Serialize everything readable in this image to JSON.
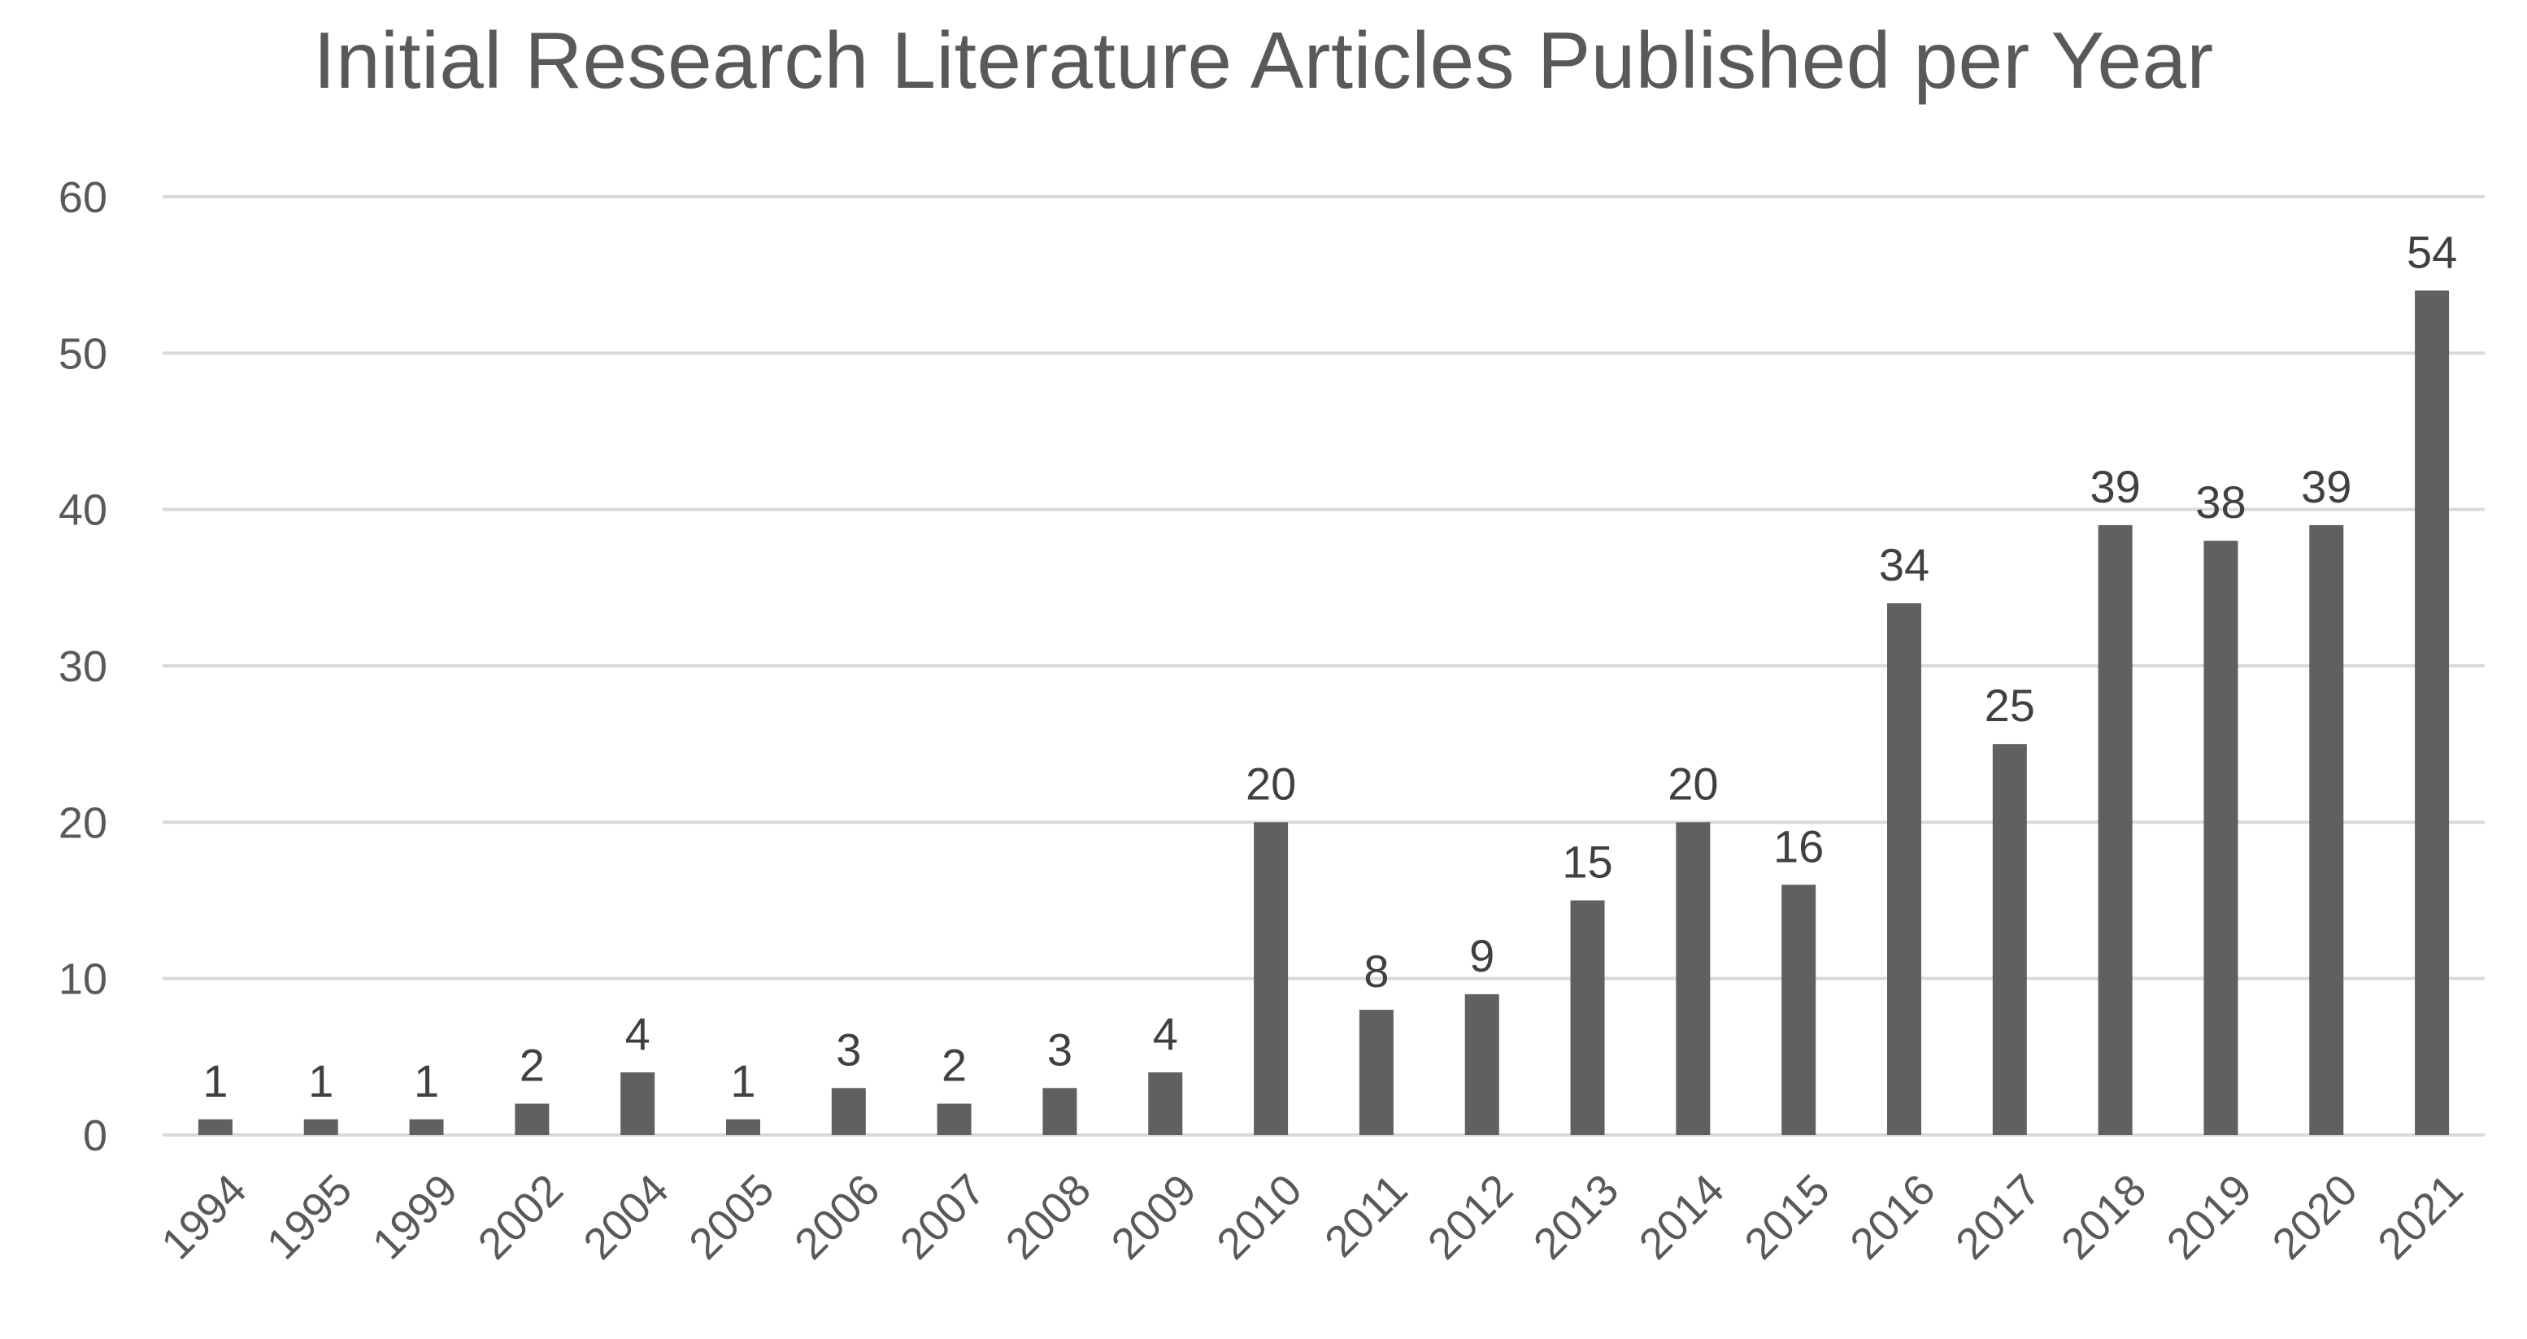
{
  "chart_data": {
    "type": "bar",
    "title": "Initial Research Literature Articles Published per Year",
    "xlabel": "",
    "ylabel": "",
    "categories": [
      "1994",
      "1995",
      "1999",
      "2002",
      "2004",
      "2005",
      "2006",
      "2007",
      "2008",
      "2009",
      "2010",
      "2011",
      "2012",
      "2013",
      "2014",
      "2015",
      "2016",
      "2017",
      "2018",
      "2019",
      "2020",
      "2021"
    ],
    "values": [
      1,
      1,
      1,
      2,
      4,
      1,
      3,
      2,
      3,
      4,
      20,
      8,
      9,
      15,
      20,
      16,
      34,
      25,
      39,
      38,
      39,
      54
    ],
    "yticks": [
      "0",
      "10",
      "20",
      "30",
      "40",
      "50",
      "60"
    ],
    "ylim": [
      0,
      60
    ],
    "grid": true,
    "legend": "none",
    "bar_color": "#606060",
    "data_labels": true
  }
}
